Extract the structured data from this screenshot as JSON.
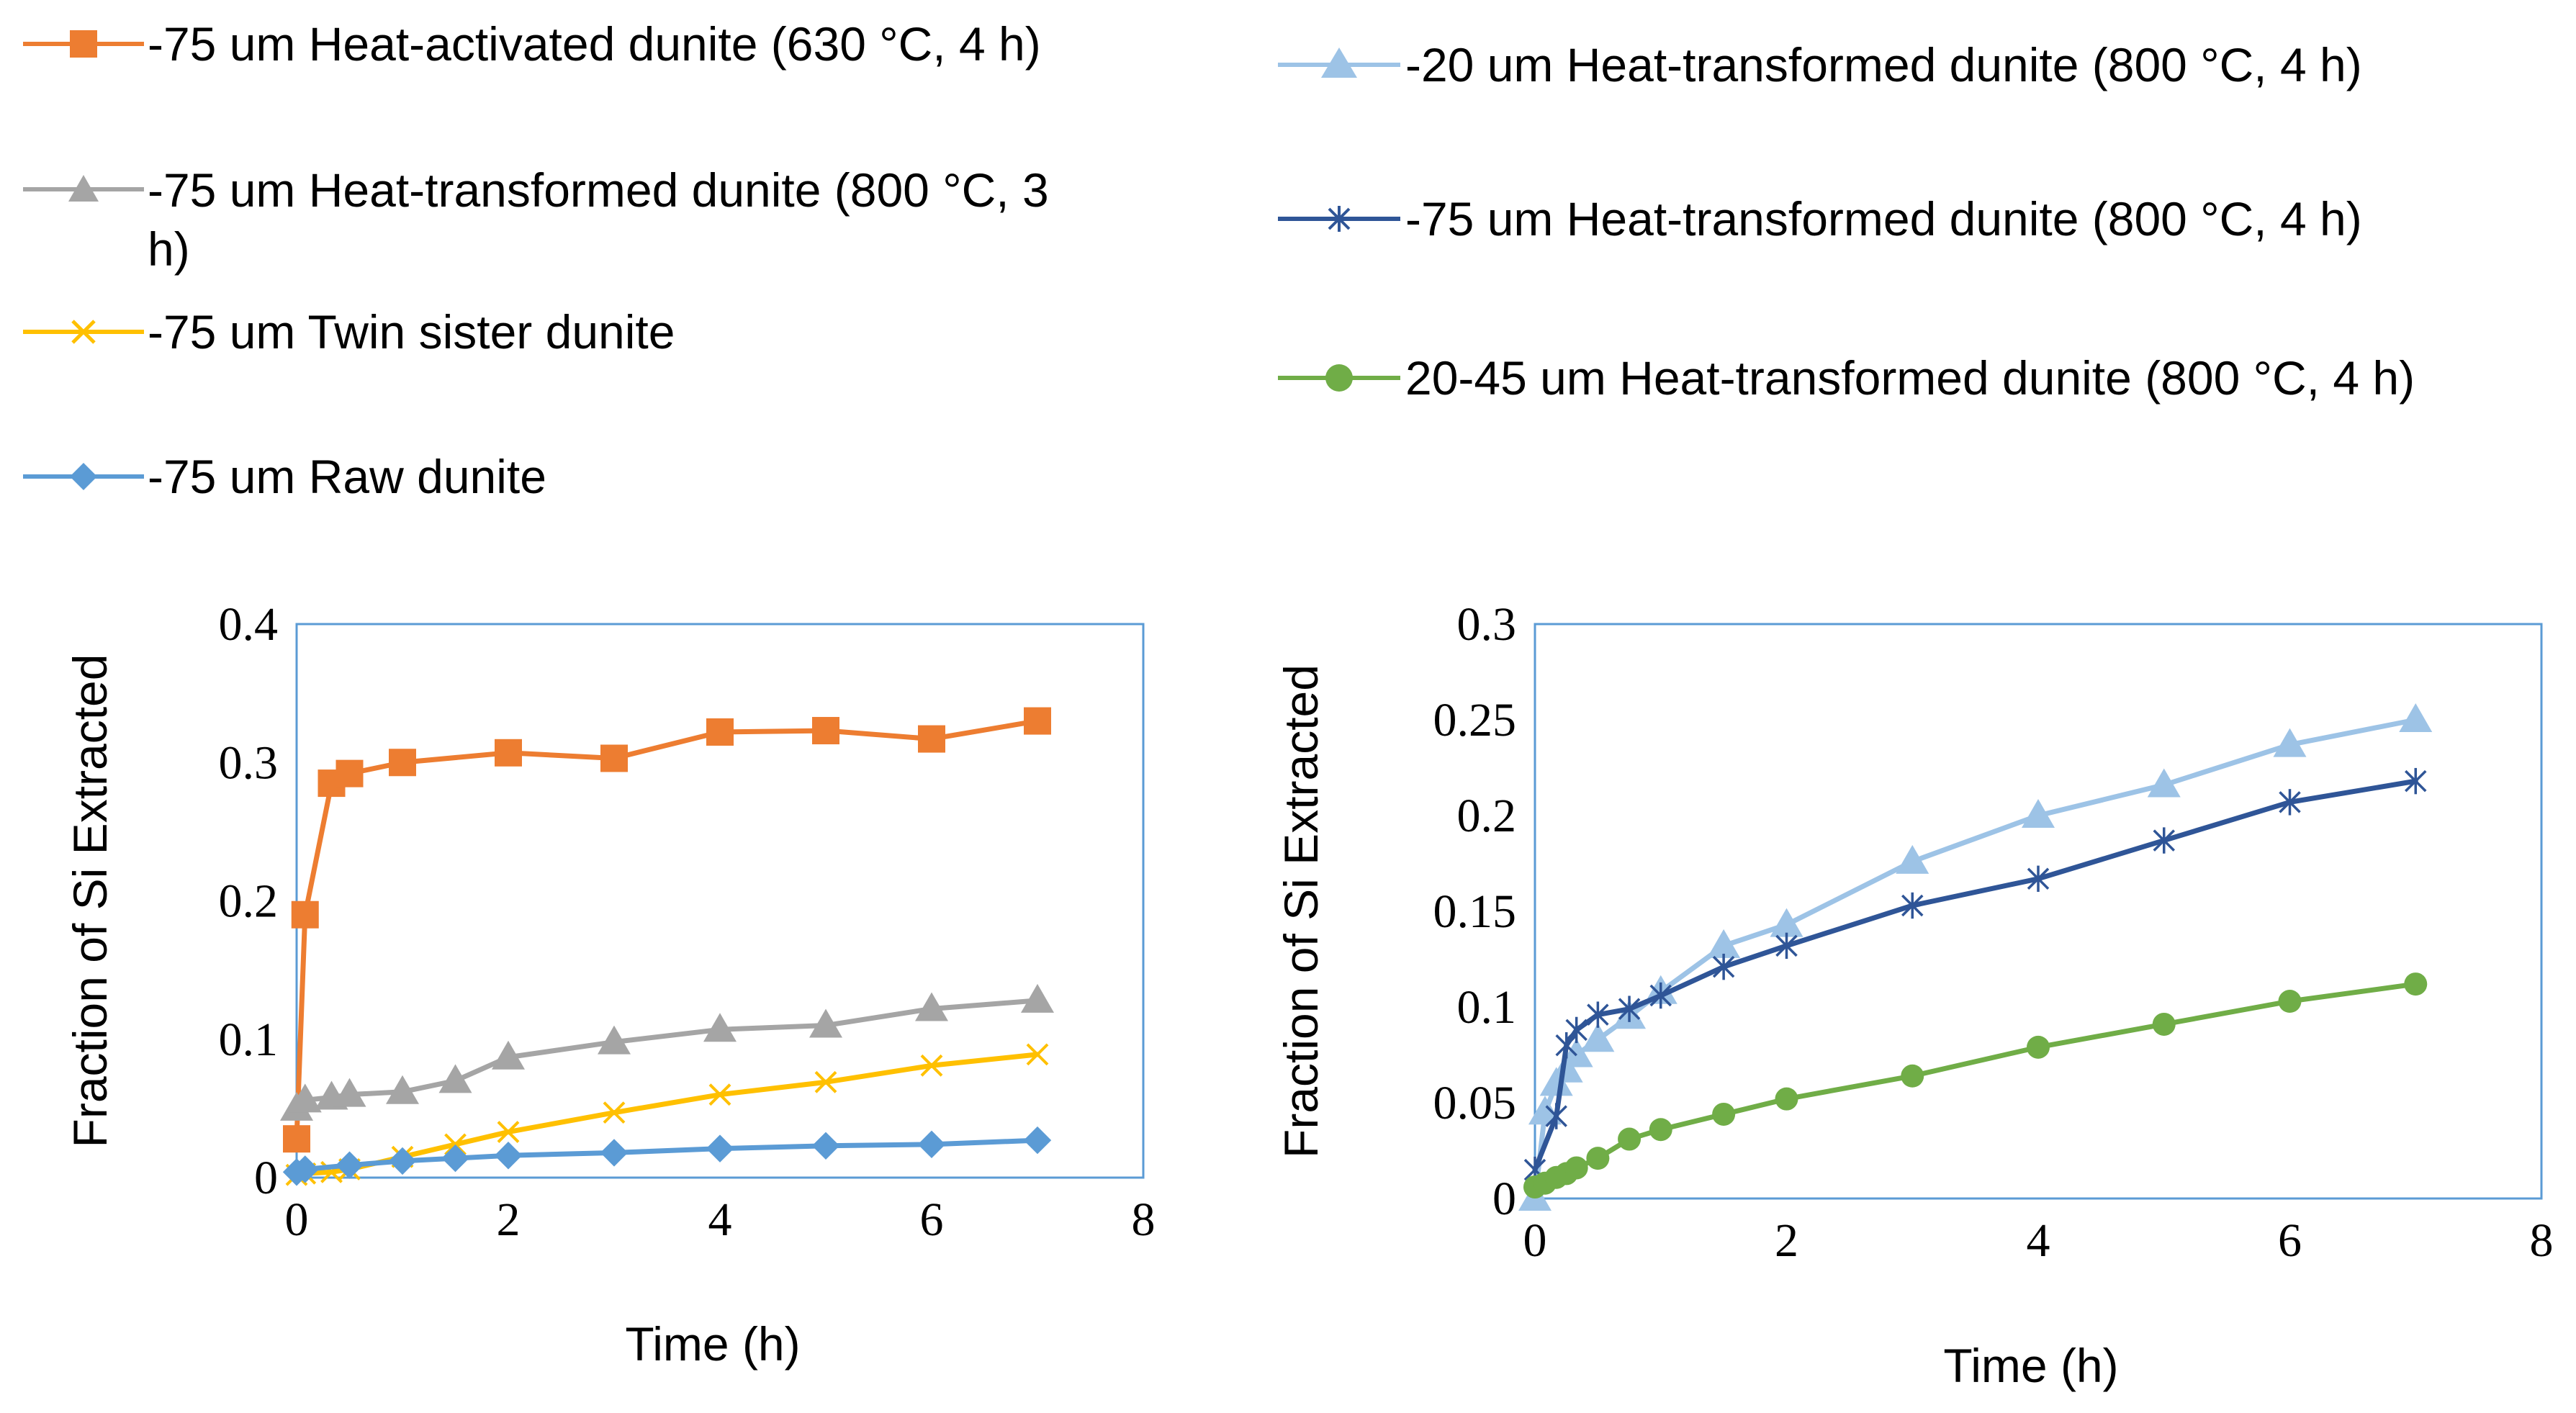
{
  "chart_data": [
    {
      "type": "line",
      "title": "",
      "xlabel": "Time (h)",
      "ylabel": "Fraction of Si Extracted",
      "xlim": [
        0,
        8
      ],
      "ylim": [
        0,
        0.4
      ],
      "xticks": [
        "0",
        "2",
        "4",
        "6",
        "8"
      ],
      "yticks": [
        "0",
        "0.1",
        "0.2",
        "0.3",
        "0.4"
      ],
      "grid": false,
      "series": [
        {
          "name": "-75 um Heat-activated dunite (630 °C, 4 h)",
          "color": "#ED7D31",
          "marker": "square",
          "x": [
            0,
            0.08,
            0.33,
            0.5,
            1,
            2,
            3,
            4,
            5,
            6,
            7
          ],
          "y": [
            0.028,
            0.19,
            0.285,
            0.292,
            0.3,
            0.307,
            0.303,
            0.322,
            0.323,
            0.317,
            0.33
          ]
        },
        {
          "name": "-75 um Heat-transformed dunite (800 °C, 3 h)",
          "color": "#A5A5A5",
          "marker": "triangle",
          "x": [
            0,
            0.08,
            0.33,
            0.5,
            1,
            1.5,
            2,
            3,
            4,
            5,
            6,
            7
          ],
          "y": [
            0.05,
            0.056,
            0.058,
            0.06,
            0.062,
            0.07,
            0.087,
            0.098,
            0.107,
            0.11,
            0.122,
            0.128
          ]
        },
        {
          "name": "-75 um Twin sister dunite",
          "color": "#FFC000",
          "marker": "x",
          "x": [
            0,
            0.08,
            0.33,
            0.5,
            1,
            1.5,
            2,
            3,
            4,
            5,
            6,
            7
          ],
          "y": [
            0.002,
            0.003,
            0.004,
            0.006,
            0.015,
            0.024,
            0.033,
            0.047,
            0.06,
            0.069,
            0.081,
            0.089
          ]
        },
        {
          "name": "-75 um Raw dunite",
          "color": "#5B9BD5",
          "marker": "diamond",
          "x": [
            0,
            0.08,
            0.5,
            1,
            1.5,
            2,
            3,
            4,
            5,
            6,
            7
          ],
          "y": [
            0.004,
            0.006,
            0.009,
            0.012,
            0.014,
            0.016,
            0.018,
            0.021,
            0.023,
            0.024,
            0.027
          ]
        }
      ]
    },
    {
      "type": "line",
      "title": "",
      "xlabel": "Time (h)",
      "ylabel": "Fraction of Si Extracted",
      "xlim": [
        0,
        8
      ],
      "ylim": [
        0,
        0.3
      ],
      "xticks": [
        "0",
        "2",
        "4",
        "6",
        "8"
      ],
      "yticks": [
        "0",
        "0.05",
        "0.1",
        "0.15",
        "0.2",
        "0.25",
        "0.3"
      ],
      "grid": false,
      "series": [
        {
          "name": "-20 um Heat-transformed dunite (800 °C, 4 h)",
          "color": "#9DC3E6",
          "marker": "triangle",
          "x": [
            0,
            0.08,
            0.17,
            0.25,
            0.33,
            0.5,
            0.75,
            1,
            1.5,
            2,
            3,
            4,
            5,
            6,
            7
          ],
          "y": [
            0.0,
            0.045,
            0.06,
            0.067,
            0.075,
            0.083,
            0.095,
            0.108,
            0.132,
            0.143,
            0.176,
            0.2,
            0.216,
            0.237,
            0.25
          ]
        },
        {
          "name": "-75 um Heat-transformed dunite (800 °C, 4 h)",
          "color": "#2F5597",
          "marker": "star",
          "x": [
            0,
            0.17,
            0.25,
            0.33,
            0.5,
            0.75,
            1,
            1.5,
            2,
            3,
            4,
            5,
            6,
            7
          ],
          "y": [
            0.015,
            0.043,
            0.08,
            0.088,
            0.096,
            0.099,
            0.106,
            0.121,
            0.132,
            0.153,
            0.167,
            0.187,
            0.207,
            0.218
          ]
        },
        {
          "name": "20-45 um Heat-transformed dunite (800 °C, 4 h)",
          "color": "#70AD47",
          "marker": "circle",
          "x": [
            0,
            0.08,
            0.17,
            0.25,
            0.33,
            0.5,
            0.75,
            1,
            1.5,
            2,
            3,
            4,
            5,
            6,
            7
          ],
          "y": [
            0.006,
            0.008,
            0.011,
            0.013,
            0.016,
            0.021,
            0.031,
            0.036,
            0.044,
            0.052,
            0.064,
            0.079,
            0.091,
            0.103,
            0.112
          ]
        }
      ]
    }
  ]
}
